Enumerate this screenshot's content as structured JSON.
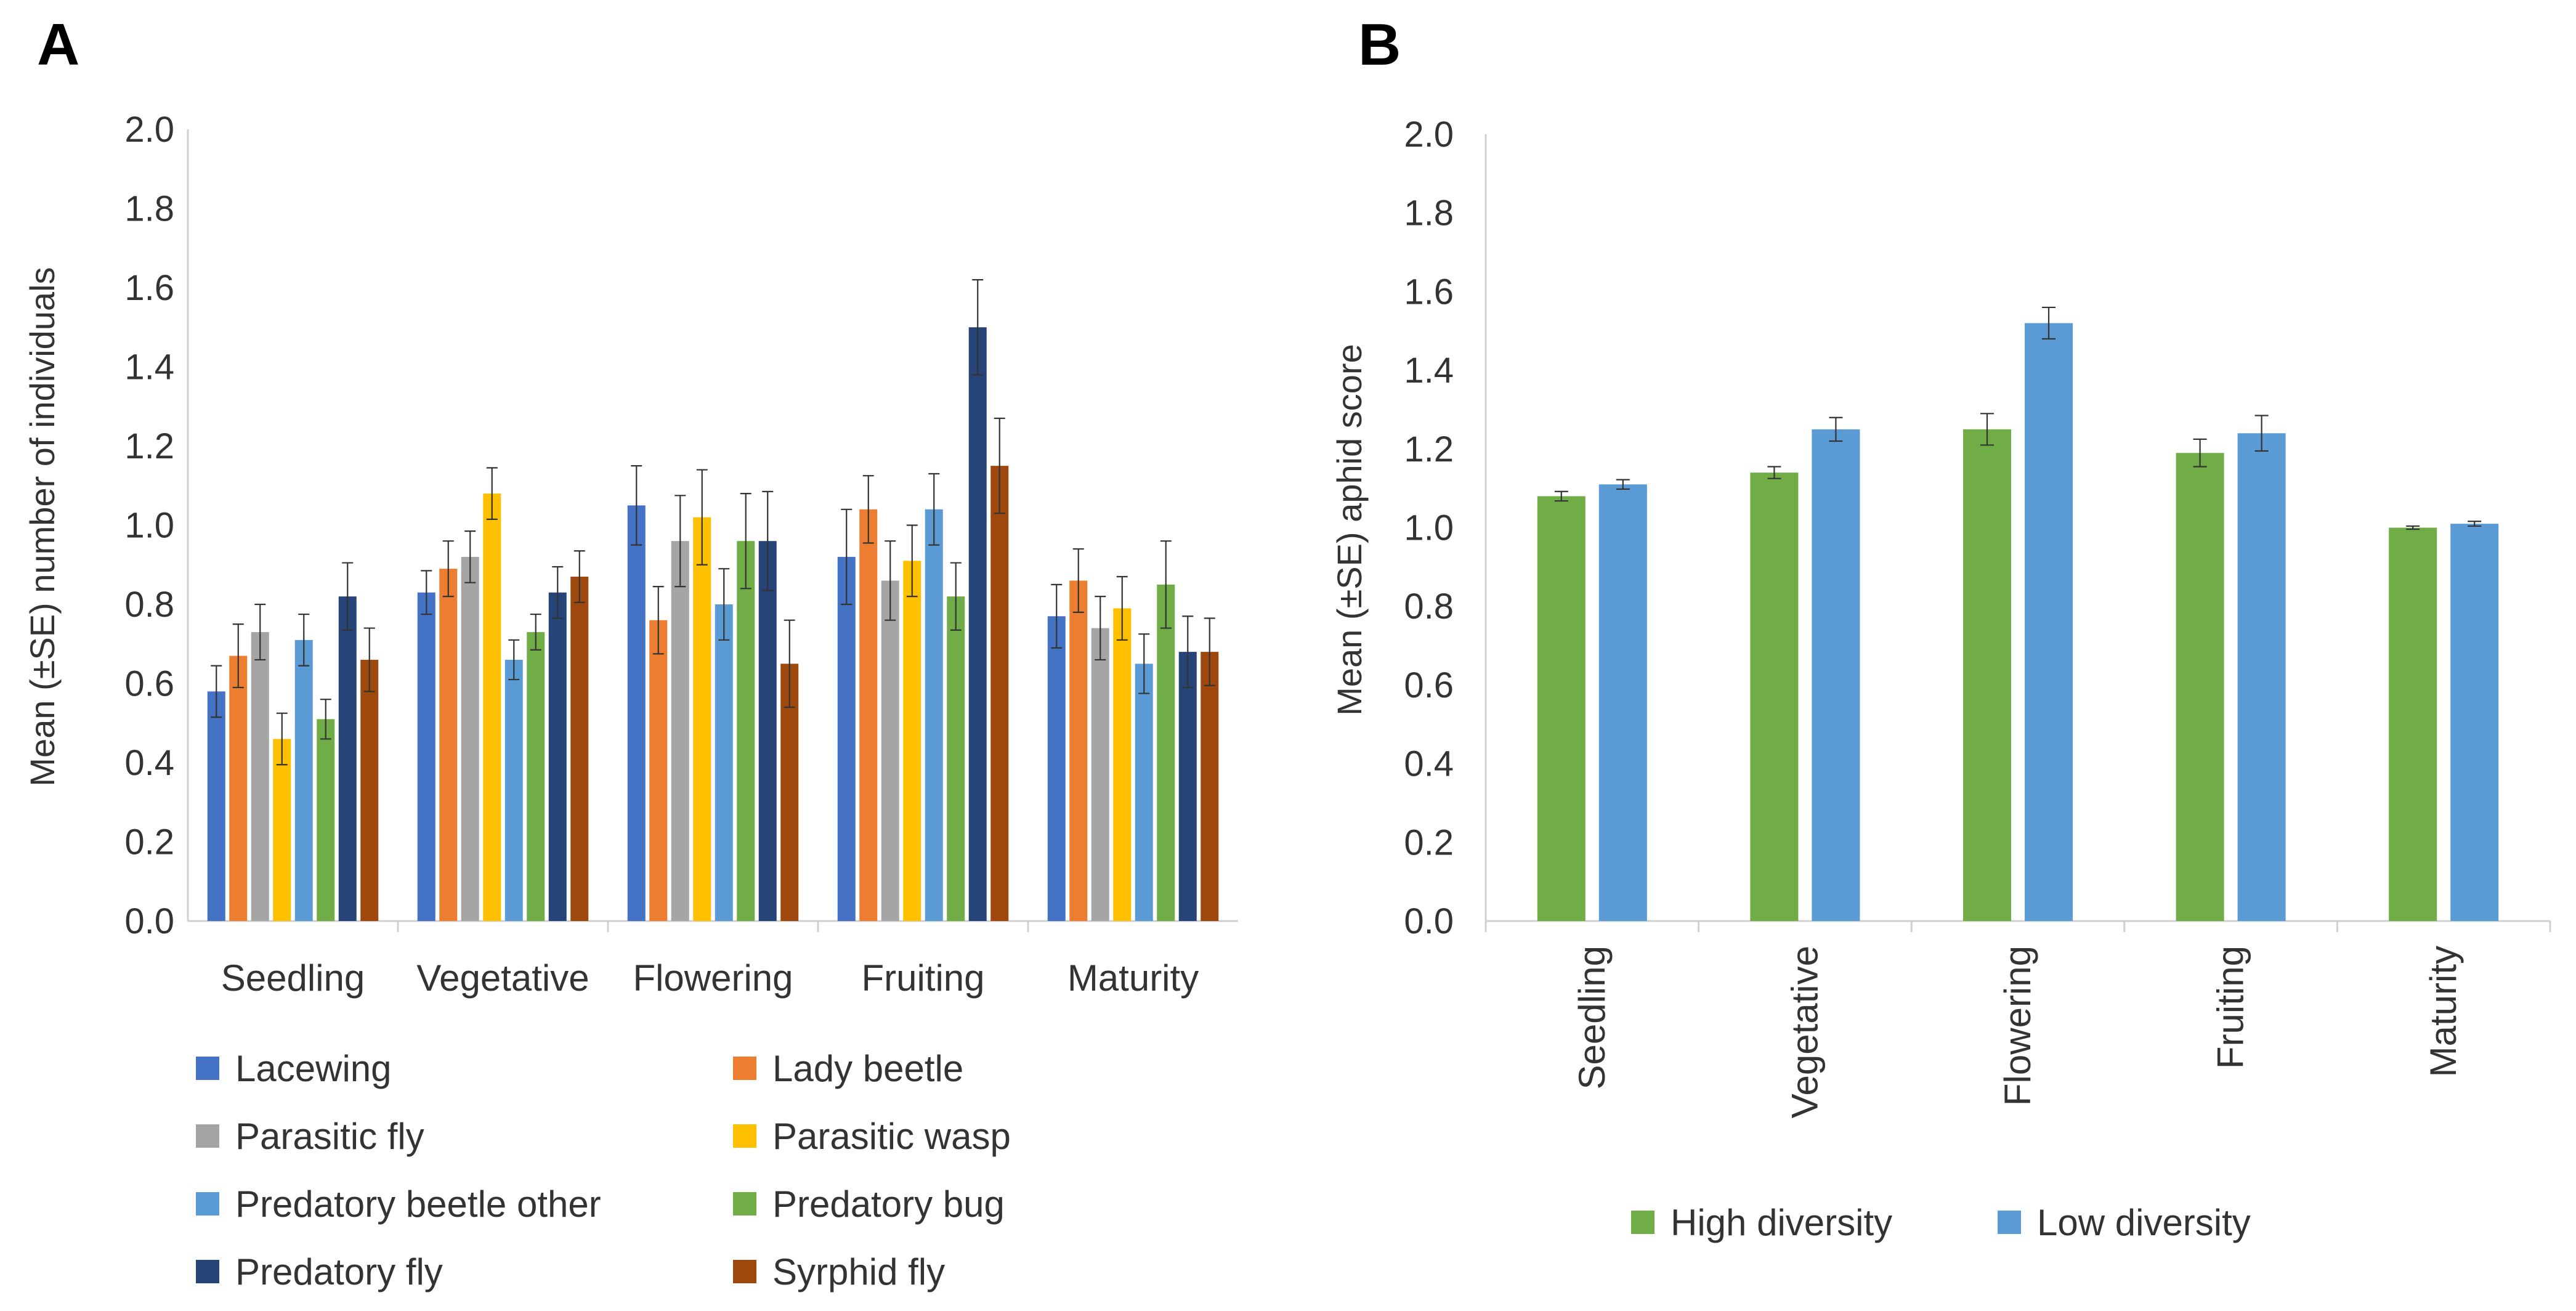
{
  "chart_data": [
    {
      "panel": "A",
      "type": "bar",
      "ylabel": "Mean (±SE) number of individuals",
      "xlabel": "",
      "ylim": [
        0,
        2.0
      ],
      "yticks": [
        "0.0",
        "0.2",
        "0.4",
        "0.6",
        "0.8",
        "1.0",
        "1.2",
        "1.4",
        "1.6",
        "1.8",
        "2.0"
      ],
      "categories": [
        "Seedling",
        "Vegetative",
        "Flowering",
        "Fruiting",
        "Maturity"
      ],
      "legend_position": "bottom",
      "series": [
        {
          "name": "Lacewing",
          "color": "#4472C4",
          "values": [
            0.58,
            0.83,
            1.05,
            0.92,
            0.77
          ],
          "errors": [
            0.065,
            0.055,
            0.1,
            0.12,
            0.08
          ]
        },
        {
          "name": "Lady beetle",
          "color": "#ED7D31",
          "values": [
            0.67,
            0.89,
            0.76,
            1.04,
            0.86
          ],
          "errors": [
            0.08,
            0.07,
            0.085,
            0.085,
            0.08
          ]
        },
        {
          "name": "Parasitic fly",
          "color": "#A5A5A5",
          "values": [
            0.73,
            0.92,
            0.96,
            0.86,
            0.74
          ],
          "errors": [
            0.07,
            0.065,
            0.115,
            0.1,
            0.08
          ]
        },
        {
          "name": "Parasitic wasp",
          "color": "#FFC000",
          "values": [
            0.46,
            1.08,
            1.02,
            0.91,
            0.79
          ],
          "errors": [
            0.065,
            0.065,
            0.12,
            0.09,
            0.08
          ]
        },
        {
          "name": "Predatory beetle other",
          "color": "#5B9BD5",
          "values": [
            0.71,
            0.66,
            0.8,
            1.04,
            0.65
          ],
          "errors": [
            0.065,
            0.05,
            0.09,
            0.09,
            0.075
          ]
        },
        {
          "name": "Predatory bug",
          "color": "#70AD47",
          "values": [
            0.51,
            0.73,
            0.96,
            0.82,
            0.85
          ],
          "errors": [
            0.05,
            0.045,
            0.12,
            0.085,
            0.11
          ]
        },
        {
          "name": "Predatory fly",
          "color": "#264478",
          "values": [
            0.82,
            0.83,
            0.96,
            1.5,
            0.68
          ],
          "errors": [
            0.085,
            0.065,
            0.125,
            0.12,
            0.09
          ]
        },
        {
          "name": "Syrphid fly",
          "color": "#9E480E",
          "values": [
            0.66,
            0.87,
            0.65,
            1.15,
            0.68
          ],
          "errors": [
            0.08,
            0.065,
            0.11,
            0.12,
            0.085
          ]
        }
      ]
    },
    {
      "panel": "B",
      "type": "bar",
      "ylabel": "Mean (±SE) aphid score",
      "xlabel": "",
      "ylim": [
        0,
        2.0
      ],
      "yticks": [
        "0.0",
        "0.2",
        "0.4",
        "0.6",
        "0.8",
        "1.0",
        "1.2",
        "1.4",
        "1.6",
        "1.8",
        "2.0"
      ],
      "categories": [
        "Seedling",
        "Vegetative",
        "Flowering",
        "Fruiting",
        "Maturity"
      ],
      "legend_position": "bottom",
      "series": [
        {
          "name": "High diversity",
          "color": "#70AD47",
          "values": [
            1.08,
            1.14,
            1.25,
            1.19,
            1.0
          ],
          "errors": [
            0.012,
            0.015,
            0.04,
            0.035,
            0.004
          ]
        },
        {
          "name": "Low diversity",
          "color": "#5B9BD5",
          "values": [
            1.11,
            1.25,
            1.52,
            1.24,
            1.01
          ],
          "errors": [
            0.012,
            0.03,
            0.04,
            0.045,
            0.006
          ]
        }
      ]
    }
  ]
}
